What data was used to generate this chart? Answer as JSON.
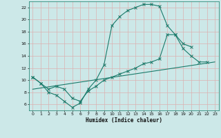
{
  "xlabel": "Humidex (Indice chaleur)",
  "background_color": "#cce8e8",
  "grid_color": "#dbb0b0",
  "line_color": "#1a7a6a",
  "xlim": [
    -0.5,
    23.5
  ],
  "ylim": [
    5.0,
    23.0
  ],
  "xticks": [
    0,
    1,
    2,
    3,
    4,
    5,
    6,
    7,
    8,
    9,
    10,
    11,
    12,
    13,
    14,
    15,
    16,
    17,
    18,
    19,
    20,
    21,
    22,
    23
  ],
  "yticks": [
    6,
    8,
    10,
    12,
    14,
    16,
    18,
    20,
    22
  ],
  "line1_x": [
    0,
    1,
    2,
    3,
    4,
    5,
    6,
    7,
    8,
    9,
    10,
    11,
    12,
    13,
    14,
    15,
    16,
    17,
    18,
    19,
    20,
    21,
    22
  ],
  "line1_y": [
    10.5,
    9.5,
    8.0,
    7.5,
    6.5,
    5.5,
    6.2,
    8.5,
    10.0,
    12.5,
    19.0,
    20.5,
    21.5,
    22.0,
    22.5,
    22.5,
    22.2,
    19.0,
    17.5,
    15.2,
    14.0,
    13.0,
    13.0
  ],
  "line2_x": [
    0,
    1,
    2,
    3,
    4,
    5,
    6,
    7,
    8,
    9,
    10,
    11,
    12,
    13,
    14,
    15,
    16,
    17,
    18,
    19,
    20
  ],
  "line2_y": [
    10.5,
    9.5,
    8.5,
    9.0,
    8.5,
    7.0,
    6.5,
    8.2,
    9.0,
    10.0,
    10.5,
    11.0,
    11.5,
    12.0,
    12.7,
    13.0,
    13.5,
    17.5,
    17.5,
    16.0,
    15.5
  ],
  "line3_x": [
    0,
    23
  ],
  "line3_y": [
    8.5,
    13.0
  ]
}
